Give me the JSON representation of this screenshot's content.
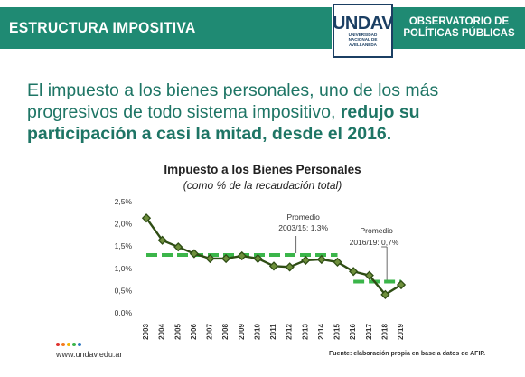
{
  "header": {
    "title": "ESTRUCTURA IMPOSITIVA",
    "logo_mark": "UNDAV",
    "logo_sub": [
      "UNIVERSIDAD",
      "NACIONAL DE",
      "AVELLANEDA"
    ],
    "org_line1": "OBSERVATORIO DE",
    "org_line2": "POLÍTICAS PÚBLICAS"
  },
  "headline": {
    "normal": "El impuesto a los bienes personales, uno de los más progresivos de todo sistema impositivo, ",
    "bold": "redujo su participación a casi la mitad, desde el 2016."
  },
  "colors": {
    "brand": "#1f8a73",
    "headline": "#1e7565",
    "series_line": "#2e4d14",
    "series_fill": "#6e8f3c",
    "average_dash": "#3bb54a",
    "dots": [
      "#e0312e",
      "#f47a20",
      "#f4b400",
      "#3bb54a",
      "#2f77c1"
    ]
  },
  "chart_data": {
    "type": "line",
    "title": "Impuesto a los Bienes Personales",
    "subtitle": "(como % de la recaudación total)",
    "x": [
      "2003",
      "2004",
      "2005",
      "2006",
      "2007",
      "2008",
      "2009",
      "2010",
      "2011",
      "2012",
      "2013",
      "2014",
      "2015",
      "2016",
      "2017",
      "2018",
      "2019"
    ],
    "series": [
      {
        "values": [
          2.13,
          1.63,
          1.48,
          1.33,
          1.22,
          1.22,
          1.28,
          1.22,
          1.05,
          1.03,
          1.18,
          1.2,
          1.14,
          0.93,
          0.84,
          0.41,
          0.63
        ]
      }
    ],
    "averages": [
      {
        "label_line1": "Promedio",
        "label_line2": "2003/15: 1,3%",
        "value": 1.3,
        "from": "2003",
        "to": "2015"
      },
      {
        "label_line1": "Promedio",
        "label_line2": "2016/19:   0,7%",
        "value": 0.7,
        "from": "2016",
        "to": "2019"
      }
    ],
    "y_ticks": [
      "0,0%",
      "0,5%",
      "1,0%",
      "1,5%",
      "2,0%",
      "2,5%"
    ],
    "ylim": [
      0,
      2.5
    ],
    "grid": false,
    "legend": "none"
  },
  "footer": {
    "url": "www.undav.edu.ar",
    "source": "Fuente: elaboración propia en base a datos de AFIP."
  }
}
